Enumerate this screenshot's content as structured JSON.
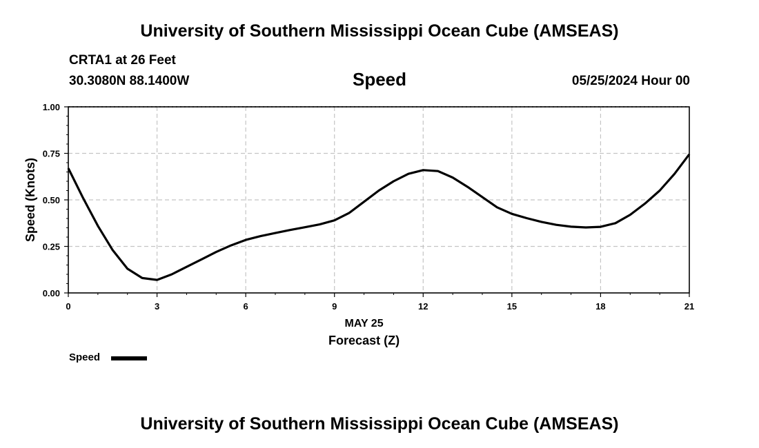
{
  "header": {
    "title_top": "University of Southern Mississippi Ocean Cube (AMSEAS)",
    "station": "CRTA1 at 26 Feet",
    "location": "30.3080N  88.1400W",
    "variable": "Speed",
    "datetime": "05/25/2024 Hour 00"
  },
  "footer": {
    "title_bottom": "University of Southern Mississippi Ocean Cube (AMSEAS)"
  },
  "legend": {
    "label": "Speed",
    "color": "#000000"
  },
  "chart_data": {
    "type": "line",
    "title": "Speed",
    "xlabel_date": "MAY 25",
    "xlabel": "Forecast (Z)",
    "ylabel": "Speed (Knots)",
    "xlim": [
      0,
      21
    ],
    "ylim": [
      0,
      1
    ],
    "xticks": [
      0,
      3,
      6,
      9,
      12,
      15,
      18,
      21
    ],
    "xtick_labels": [
      "0",
      "3",
      "6",
      "9",
      "12",
      "15",
      "18",
      "21"
    ],
    "yticks": [
      0,
      0.25,
      0.5,
      0.75,
      1.0
    ],
    "ytick_labels": [
      "0.00",
      "0.25",
      "0.50",
      "0.75",
      "1.00"
    ],
    "grid": true,
    "series": [
      {
        "name": "Speed",
        "color": "#000000",
        "x": [
          0,
          0.5,
          1,
          1.5,
          2,
          2.5,
          3,
          3.5,
          4,
          4.5,
          5,
          5.5,
          6,
          6.5,
          7,
          7.5,
          8,
          8.5,
          9,
          9.5,
          10,
          10.5,
          11,
          11.5,
          12,
          12.5,
          13,
          13.5,
          14,
          14.5,
          15,
          15.5,
          16,
          16.5,
          17,
          17.5,
          18,
          18.5,
          19,
          19.5,
          20,
          20.5,
          21
        ],
        "values": [
          0.67,
          0.51,
          0.36,
          0.23,
          0.13,
          0.08,
          0.07,
          0.1,
          0.14,
          0.18,
          0.22,
          0.255,
          0.285,
          0.305,
          0.322,
          0.338,
          0.353,
          0.368,
          0.39,
          0.43,
          0.49,
          0.55,
          0.6,
          0.64,
          0.66,
          0.655,
          0.62,
          0.57,
          0.515,
          0.46,
          0.425,
          0.402,
          0.382,
          0.366,
          0.356,
          0.352,
          0.355,
          0.375,
          0.42,
          0.48,
          0.55,
          0.64,
          0.745
        ]
      }
    ]
  }
}
